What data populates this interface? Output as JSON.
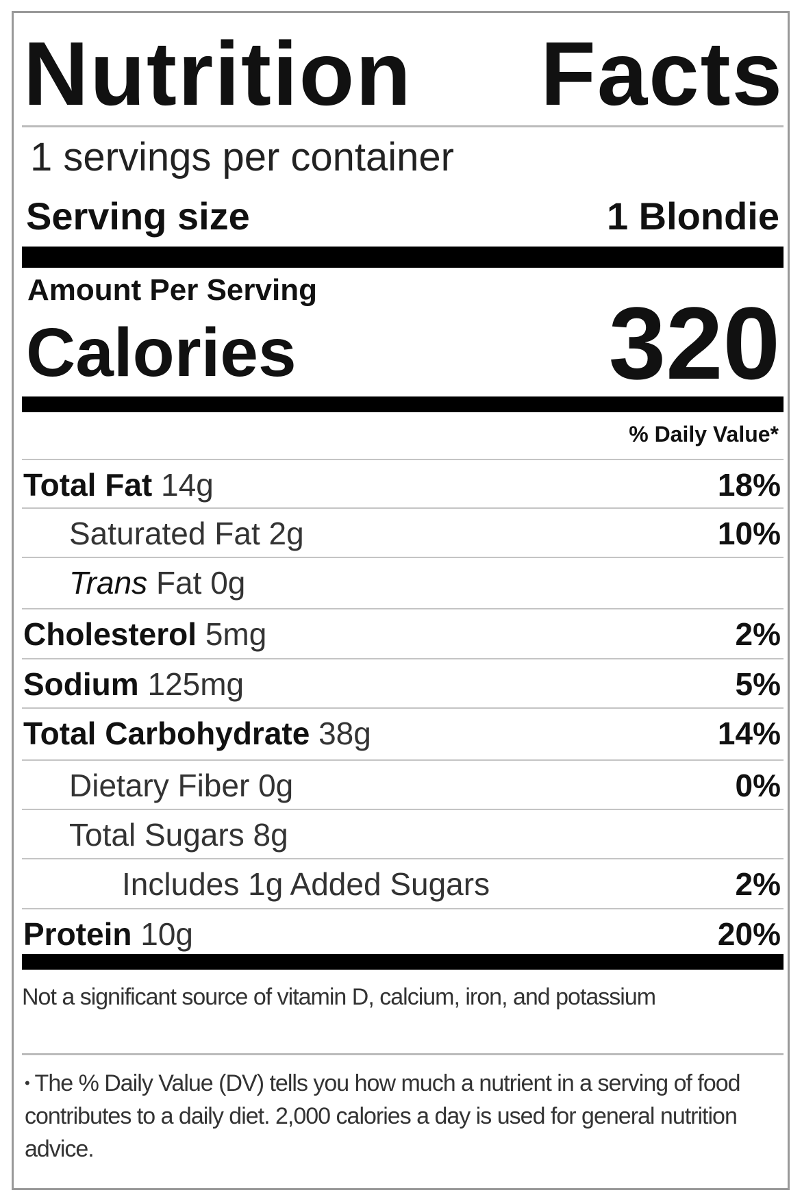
{
  "title_part1": "Nutrition",
  "title_part2": "Facts",
  "servings_per_container": "1 servings per container",
  "serving_size_label": "Serving size",
  "serving_size_value": "1 Blondie",
  "amount_per_serving": "Amount Per Serving",
  "calories_label": "Calories",
  "calories_value": "320",
  "daily_value_header": "% Daily Value*",
  "nutrients": [
    {
      "name": "Total Fat",
      "amount": "14g",
      "dv": "18%",
      "bold": true,
      "indent": 0
    },
    {
      "name": "Saturated Fat",
      "amount": "2g",
      "dv": "10%",
      "bold": false,
      "indent": 1
    },
    {
      "name_italic": "Trans",
      "name": "Fat",
      "amount": "0g",
      "dv": "",
      "bold": false,
      "indent": 1
    },
    {
      "name": "Cholesterol",
      "amount": "5mg",
      "dv": "2%",
      "bold": true,
      "indent": 0
    },
    {
      "name": "Sodium",
      "amount": "125mg",
      "dv": "5%",
      "bold": true,
      "indent": 0
    },
    {
      "name": "Total Carbohydrate",
      "amount": "38g",
      "dv": "14%",
      "bold": true,
      "indent": 0
    },
    {
      "name": "Dietary Fiber",
      "amount": "0g",
      "dv": "0%",
      "bold": false,
      "indent": 1
    },
    {
      "name": "Total Sugars",
      "amount": "8g",
      "dv": "",
      "bold": false,
      "indent": 1
    },
    {
      "name": "Includes 1g Added Sugars",
      "amount": "",
      "dv": "2%",
      "bold": false,
      "indent": 2
    },
    {
      "name": "Protein",
      "amount": "10g",
      "dv": "20%",
      "bold": true,
      "indent": 0
    }
  ],
  "footnote_vitamins": "Not a significant source of vitamin D, calcium, iron, and potassium",
  "footnote_dv_marker": "•",
  "footnote_dv": "The % Daily Value (DV) tells you how much a nutrient in a serving of food contributes to a daily diet. 2,000 calories a day is used for general nutrition advice."
}
